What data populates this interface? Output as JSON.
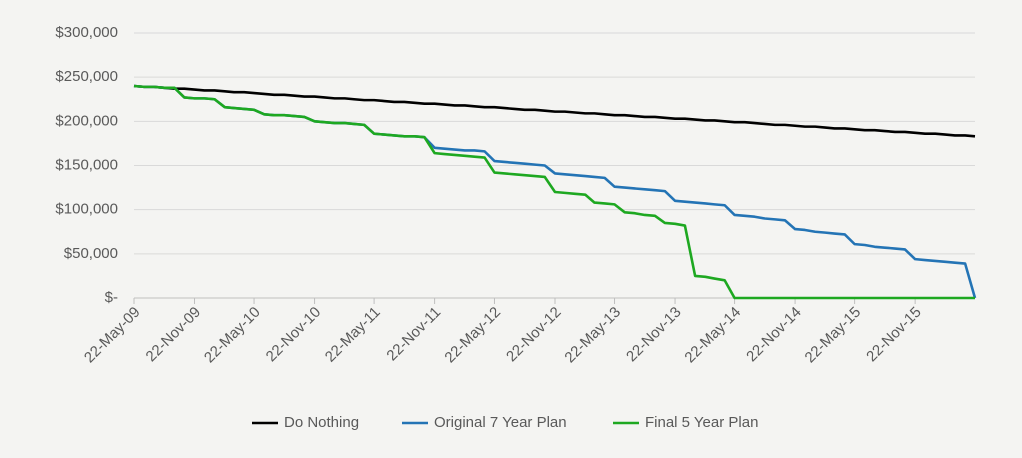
{
  "chart_data": {
    "type": "line",
    "x": [
      "2009-05-22",
      "2009-06-22",
      "2009-07-22",
      "2009-08-22",
      "2009-09-22",
      "2009-10-22",
      "2009-11-22",
      "2009-12-22",
      "2010-01-22",
      "2010-02-22",
      "2010-03-22",
      "2010-04-22",
      "2010-05-22",
      "2010-06-22",
      "2010-07-22",
      "2010-08-22",
      "2010-09-22",
      "2010-10-22",
      "2010-11-22",
      "2010-12-22",
      "2011-01-22",
      "2011-02-22",
      "2011-03-22",
      "2011-04-22",
      "2011-05-22",
      "2011-06-22",
      "2011-07-22",
      "2011-08-22",
      "2011-09-22",
      "2011-10-22",
      "2011-11-22",
      "2011-12-22",
      "2012-01-22",
      "2012-02-22",
      "2012-03-22",
      "2012-04-22",
      "2012-05-22",
      "2012-06-22",
      "2012-07-22",
      "2012-08-22",
      "2012-09-22",
      "2012-10-22",
      "2012-11-22",
      "2012-12-22",
      "2013-01-22",
      "2013-02-22",
      "2013-03-22",
      "2013-04-22",
      "2013-05-22",
      "2013-06-22",
      "2013-07-22",
      "2013-08-22",
      "2013-09-22",
      "2013-10-22",
      "2013-11-22",
      "2013-12-22",
      "2014-01-22",
      "2014-02-22",
      "2014-03-22",
      "2014-04-22",
      "2014-05-22",
      "2014-06-22",
      "2014-07-22",
      "2014-08-22",
      "2014-09-22",
      "2014-10-22",
      "2014-11-22",
      "2014-12-22",
      "2015-01-22",
      "2015-02-22",
      "2015-03-22",
      "2015-04-22",
      "2015-05-22",
      "2015-06-22",
      "2015-07-22",
      "2015-08-22",
      "2015-09-22",
      "2015-10-22",
      "2015-11-22",
      "2015-12-22",
      "2016-01-22",
      "2016-02-22",
      "2016-03-22",
      "2016-04-22",
      "2016-05-22"
    ],
    "series": [
      {
        "name": "Do Nothing",
        "color": "#000000",
        "values": [
          240000,
          239000,
          239000,
          238000,
          237000,
          237000,
          236000,
          235000,
          235000,
          234000,
          233000,
          233000,
          232000,
          231000,
          230000,
          230000,
          229000,
          228000,
          228000,
          227000,
          226000,
          226000,
          225000,
          224000,
          224000,
          223000,
          222000,
          222000,
          221000,
          220000,
          220000,
          219000,
          218000,
          218000,
          217000,
          216000,
          216000,
          215000,
          214000,
          213000,
          213000,
          212000,
          211000,
          211000,
          210000,
          209000,
          209000,
          208000,
          207000,
          207000,
          206000,
          205000,
          205000,
          204000,
          203000,
          203000,
          202000,
          201000,
          201000,
          200000,
          199000,
          199000,
          198000,
          197000,
          196000,
          196000,
          195000,
          194000,
          194000,
          193000,
          192000,
          192000,
          191000,
          190000,
          190000,
          189000,
          188000,
          188000,
          187000,
          186000,
          186000,
          185000,
          184000,
          184000,
          183000
        ]
      },
      {
        "name": "Original 7 Year Plan",
        "color": "#2474b5",
        "values": [
          240000,
          239000,
          239000,
          238000,
          238000,
          227000,
          226000,
          226000,
          225000,
          216000,
          215000,
          214000,
          213000,
          208000,
          207000,
          207000,
          206000,
          205000,
          200000,
          199000,
          198000,
          198000,
          197000,
          196000,
          186000,
          185000,
          184000,
          183000,
          183000,
          182000,
          170000,
          169000,
          168000,
          167000,
          167000,
          166000,
          155000,
          154000,
          153000,
          152000,
          151000,
          150000,
          141000,
          140000,
          139000,
          138000,
          137000,
          136000,
          126000,
          125000,
          124000,
          123000,
          122000,
          121000,
          110000,
          109000,
          108000,
          107000,
          106000,
          105000,
          94000,
          93000,
          92000,
          90000,
          89000,
          88000,
          78000,
          77000,
          75000,
          74000,
          73000,
          72000,
          61000,
          60000,
          58000,
          57000,
          56000,
          55000,
          44000,
          43000,
          42000,
          41000,
          40000,
          39000,
          0
        ]
      },
      {
        "name": "Final 5 Year Plan",
        "color": "#1ea821",
        "values": [
          240000,
          239000,
          239000,
          238000,
          238000,
          227000,
          226000,
          226000,
          225000,
          216000,
          215000,
          214000,
          213000,
          208000,
          207000,
          207000,
          206000,
          205000,
          200000,
          199000,
          198000,
          198000,
          197000,
          196000,
          186000,
          185000,
          184000,
          183000,
          183000,
          182000,
          164000,
          163000,
          162000,
          161000,
          160000,
          159000,
          142000,
          141000,
          140000,
          139000,
          138000,
          137000,
          120000,
          119000,
          118000,
          117000,
          108000,
          107000,
          106000,
          97000,
          96000,
          94000,
          93000,
          85000,
          84000,
          82000,
          25000,
          24000,
          22000,
          20000,
          0,
          0,
          0,
          0,
          0,
          0,
          0,
          0,
          0,
          0,
          0,
          0,
          0,
          0,
          0,
          0,
          0,
          0,
          0,
          0,
          0,
          0,
          0,
          0,
          0
        ]
      }
    ],
    "xlim": [
      "2009-05-22",
      "2016-05-22"
    ],
    "xticks": [
      {
        "value": "2009-05-22",
        "label": "22-May-09"
      },
      {
        "value": "2009-11-22",
        "label": "22-Nov-09"
      },
      {
        "value": "2010-05-22",
        "label": "22-May-10"
      },
      {
        "value": "2010-11-22",
        "label": "22-Nov-10"
      },
      {
        "value": "2011-05-22",
        "label": "22-May-11"
      },
      {
        "value": "2011-11-22",
        "label": "22-Nov-11"
      },
      {
        "value": "2012-05-22",
        "label": "22-May-12"
      },
      {
        "value": "2012-11-22",
        "label": "22-Nov-12"
      },
      {
        "value": "2013-05-22",
        "label": "22-May-13"
      },
      {
        "value": "2013-11-22",
        "label": "22-Nov-13"
      },
      {
        "value": "2014-05-22",
        "label": "22-May-14"
      },
      {
        "value": "2014-11-22",
        "label": "22-Nov-14"
      },
      {
        "value": "2015-05-22",
        "label": "22-May-15"
      },
      {
        "value": "2015-11-22",
        "label": "22-Nov-15"
      }
    ],
    "ylim": [
      0,
      300000
    ],
    "yticks": [
      {
        "value": 0,
        "label": "$-"
      },
      {
        "value": 50000,
        "label": "$50,000"
      },
      {
        "value": 100000,
        "label": "$100,000"
      },
      {
        "value": 150000,
        "label": "$150,000"
      },
      {
        "value": 200000,
        "label": "$200,000"
      },
      {
        "value": 250000,
        "label": "$250,000"
      },
      {
        "value": 300000,
        "label": "$300,000"
      }
    ],
    "grid": true,
    "legend": "bottom"
  }
}
